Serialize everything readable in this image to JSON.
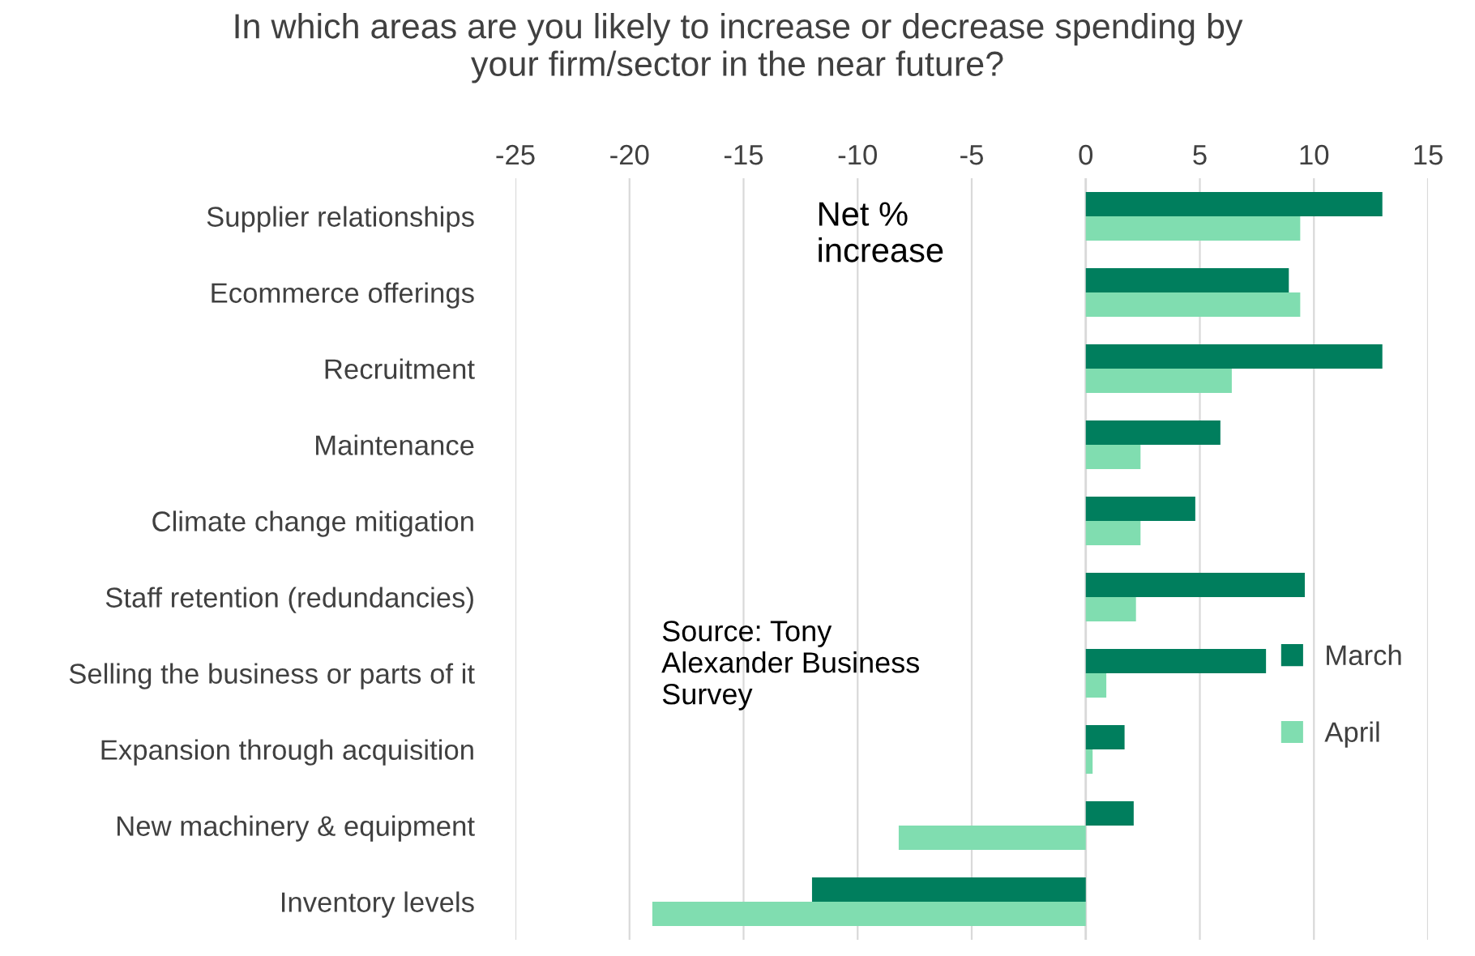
{
  "chart_data": {
    "type": "bar",
    "orientation": "horizontal",
    "title": "In which areas are you likely to increase or decrease spending by\nyour firm/sector in the near future?",
    "categories": [
      "Supplier relationships",
      "Ecommerce offerings",
      "Recruitment",
      "Maintenance",
      "Climate change mitigation",
      "Staff retention (redundancies)",
      "Selling the business or parts of it",
      "Expansion through acquisition",
      "New machinery & equipment",
      "Inventory levels"
    ],
    "series": [
      {
        "name": "March",
        "color": "#007e5d",
        "values": [
          13.0,
          8.9,
          13.0,
          5.9,
          4.8,
          9.6,
          7.9,
          1.7,
          2.1,
          -12.0
        ]
      },
      {
        "name": "April",
        "color": "#80ddb0",
        "values": [
          9.4,
          9.4,
          6.4,
          2.4,
          2.4,
          2.2,
          0.9,
          0.3,
          -8.2,
          -19.0
        ]
      }
    ],
    "xlim": [
      -25,
      15
    ],
    "xticks": [
      -25,
      -20,
      -15,
      -10,
      -5,
      0,
      5,
      10,
      15
    ],
    "grid": "x",
    "legend": "right",
    "annotations": [
      {
        "text": "Net %\nincrease"
      },
      {
        "text": "Source: Tony\nAlexander Business\nSurvey"
      }
    ]
  }
}
